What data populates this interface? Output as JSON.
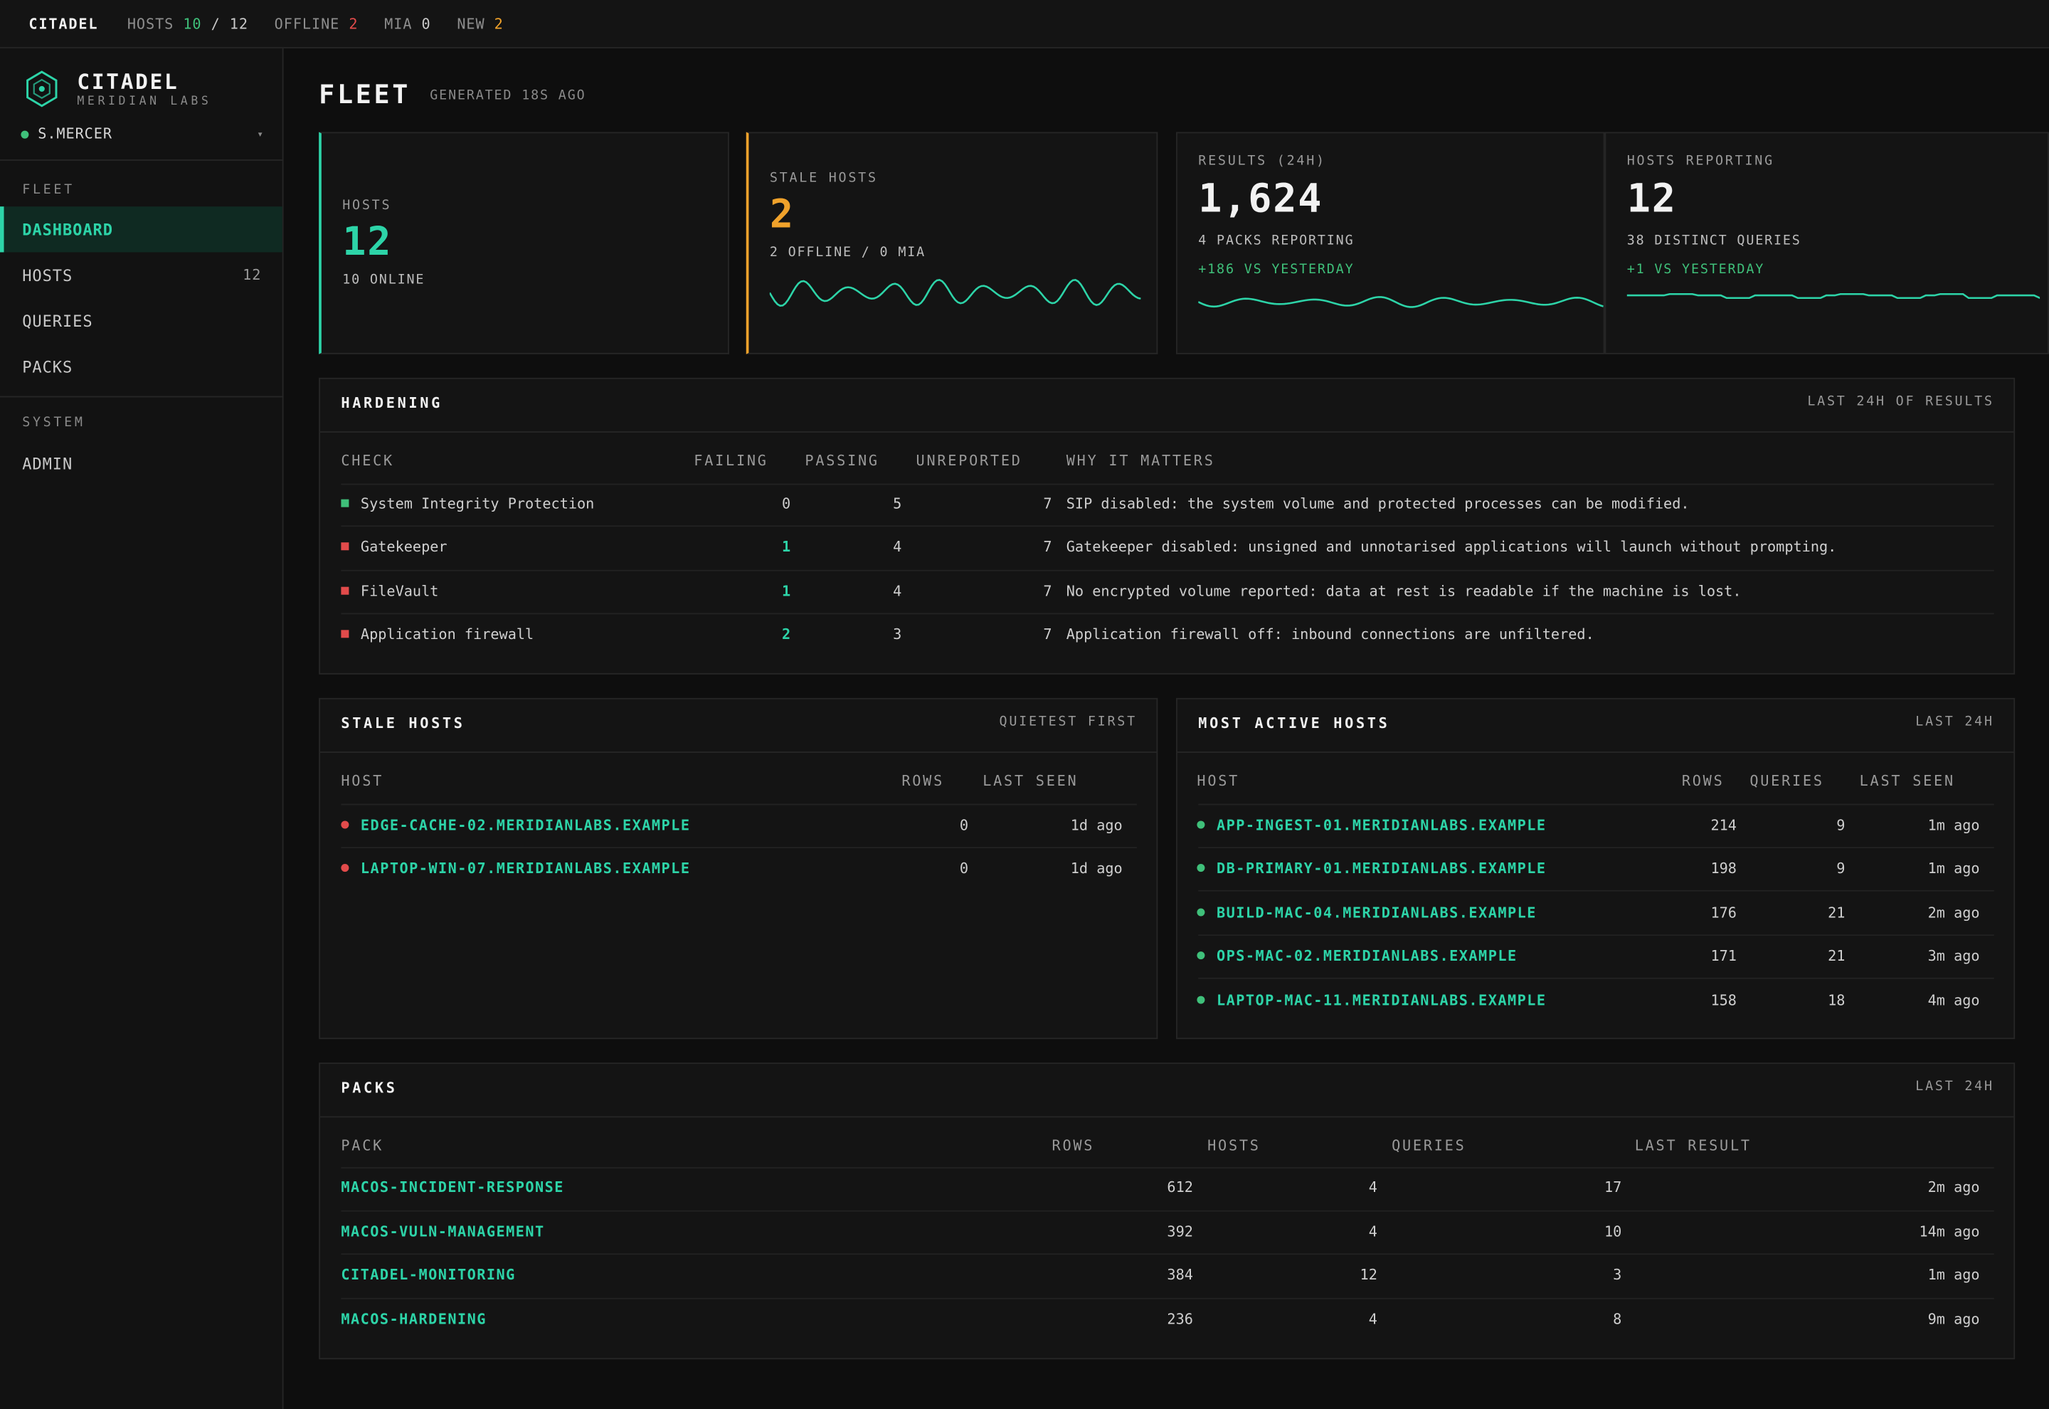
{
  "topbar": {
    "brand": "CITADEL",
    "hosts_label": "HOSTS",
    "hosts_online": "10",
    "hosts_sep": "/",
    "hosts_total": "12",
    "offline_label": "OFFLINE",
    "offline_value": "2",
    "mia_label": "MIA",
    "mia_value": "0",
    "new_label": "NEW",
    "new_value": "2"
  },
  "sidebar": {
    "logo_title": "CITADEL",
    "logo_sub": "MERIDIAN LABS",
    "user": "S.MERCER",
    "user_chevron": "▾",
    "sections": [
      {
        "label": "FLEET"
      },
      {
        "label": "SYSTEM"
      }
    ],
    "items": [
      {
        "label": "DASHBOARD",
        "count": ""
      },
      {
        "label": "HOSTS",
        "count": "12"
      },
      {
        "label": "QUERIES",
        "count": ""
      },
      {
        "label": "PACKS",
        "count": ""
      },
      {
        "label": "ADMIN",
        "count": ""
      }
    ]
  },
  "main": {
    "title": "FLEET",
    "generated": "GENERATED 18S AGO"
  },
  "kpis": [
    {
      "label": "HOSTS",
      "value": "12",
      "sub": "10 ONLINE",
      "accent": "#2dd4a8"
    },
    {
      "label": "STALE HOSTS",
      "value": "2",
      "sub": "2 OFFLINE / 0 MIA",
      "accent": "#f0a22b"
    },
    {
      "label": "RESULTS (24H)",
      "value": "1,624",
      "sub": "4 PACKS REPORTING",
      "delta": "+186 VS YESTERDAY"
    },
    {
      "label": "HOSTS REPORTING",
      "value": "12",
      "sub": "38 DISTINCT QUERIES",
      "delta": "+1 VS YESTERDAY"
    }
  ],
  "hardening": {
    "title": "HARDENING",
    "right": "LAST 24H OF RESULTS",
    "headers": [
      "CHECK",
      "FAILING",
      "PASSING",
      "UNREPORTED",
      "WHY IT MATTERS"
    ],
    "rows": [
      {
        "check": "System Integrity Protection",
        "failing": "0",
        "passing": "5",
        "unreported": "7",
        "why": "SIP disabled: the system volume and protected processes can be modified.",
        "status": "pass"
      },
      {
        "check": "Gatekeeper",
        "failing": "1",
        "passing": "4",
        "unreported": "7",
        "why": "Gatekeeper disabled: unsigned and unnotarised applications will launch without prompting.",
        "status": "fail"
      },
      {
        "check": "FileVault",
        "failing": "1",
        "passing": "4",
        "unreported": "7",
        "why": "No encrypted volume reported: data at rest is readable if the machine is lost.",
        "status": "fail"
      },
      {
        "check": "Application firewall",
        "failing": "2",
        "passing": "3",
        "unreported": "7",
        "why": "Application firewall off: inbound connections are unfiltered.",
        "status": "fail"
      }
    ]
  },
  "stale": {
    "title": "STALE HOSTS",
    "right": "QUIETEST FIRST",
    "headers": [
      "HOST",
      "ROWS",
      "LAST SEEN"
    ],
    "rows": [
      {
        "host": "EDGE-CACHE-02.MERIDIANLABS.EXAMPLE",
        "rows": "0",
        "last_seen": "1d ago"
      },
      {
        "host": "LAPTOP-WIN-07.MERIDIANLABS.EXAMPLE",
        "rows": "0",
        "last_seen": "1d ago"
      }
    ]
  },
  "active": {
    "title": "MOST ACTIVE HOSTS",
    "right": "LAST 24H",
    "headers": [
      "HOST",
      "ROWS",
      "QUERIES",
      "LAST SEEN"
    ],
    "rows": [
      {
        "host": "APP-INGEST-01.MERIDIANLABS.EXAMPLE",
        "rows": "214",
        "queries": "9",
        "last_seen": "1m ago"
      },
      {
        "host": "DB-PRIMARY-01.MERIDIANLABS.EXAMPLE",
        "rows": "198",
        "queries": "9",
        "last_seen": "1m ago"
      },
      {
        "host": "BUILD-MAC-04.MERIDIANLABS.EXAMPLE",
        "rows": "176",
        "queries": "21",
        "last_seen": "2m ago"
      },
      {
        "host": "OPS-MAC-02.MERIDIANLABS.EXAMPLE",
        "rows": "171",
        "queries": "21",
        "last_seen": "3m ago"
      },
      {
        "host": "LAPTOP-MAC-11.MERIDIANLABS.EXAMPLE",
        "rows": "158",
        "queries": "18",
        "last_seen": "4m ago"
      }
    ]
  },
  "packs": {
    "title": "PACKS",
    "right": "LAST 24H",
    "headers": [
      "PACK",
      "ROWS",
      "HOSTS",
      "QUERIES",
      "LAST RESULT"
    ],
    "rows": [
      {
        "pack": "MACOS-INCIDENT-RESPONSE",
        "rows": "612",
        "hosts": "4",
        "queries": "17",
        "last": "2m ago"
      },
      {
        "pack": "MACOS-VULN-MANAGEMENT",
        "rows": "392",
        "hosts": "4",
        "queries": "10",
        "last": "14m ago"
      },
      {
        "pack": "CITADEL-MONITORING",
        "rows": "384",
        "hosts": "12",
        "queries": "3",
        "last": "1m ago"
      },
      {
        "pack": "MACOS-HARDENING",
        "rows": "236",
        "hosts": "4",
        "queries": "8",
        "last": "9m ago"
      }
    ]
  },
  "colors": {
    "teal": "#2dd4a8",
    "green": "#3fc07a",
    "red": "#e24b4b",
    "orange": "#f0a22b"
  },
  "icons": {
    "logo": "hexagon-shield-icon",
    "user_status": "status-dot-icon",
    "chevron": "chevron-down-icon"
  }
}
